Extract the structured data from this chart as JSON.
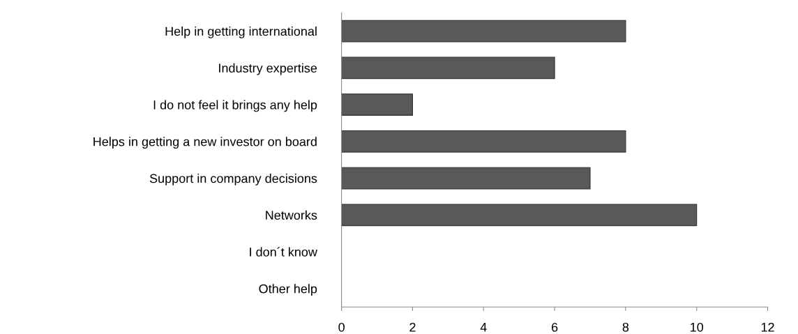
{
  "chart_data": {
    "type": "bar",
    "orientation": "horizontal",
    "categories": [
      "Help in getting international",
      "Industry expertise",
      "I do not feel it brings any help",
      "Helps in getting a new investor on board",
      "Support in company decisions",
      "Networks",
      "I don´t know",
      "Other help"
    ],
    "values": [
      8,
      6,
      2,
      8,
      7,
      10,
      0,
      0
    ],
    "color": "#595959",
    "xlim": [
      0,
      12
    ],
    "xticks": [
      0,
      2,
      4,
      6,
      8,
      10,
      12
    ],
    "grid": false,
    "legend": false
  }
}
